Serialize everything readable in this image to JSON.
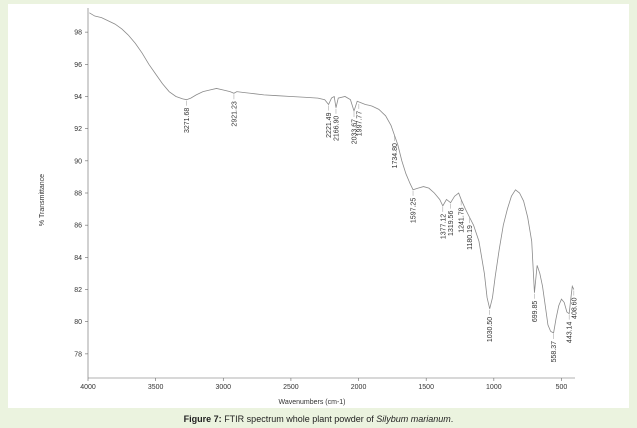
{
  "caption": {
    "figure_number": "Figure 7:",
    "text": " FTIR spectrum whole plant powder of ",
    "species": "Silybum marianum",
    "end": "."
  },
  "chart_data": {
    "type": "line",
    "title": "",
    "xlabel": "Wavenumbers (cm-1)",
    "ylabel": "% Transmittance",
    "xlim": [
      4000,
      400
    ],
    "ylim": [
      76.5,
      99.5
    ],
    "x_ticks": [
      4000,
      3500,
      3000,
      2500,
      2000,
      1500,
      1000,
      500
    ],
    "y_ticks": [
      78,
      80,
      82,
      84,
      86,
      88,
      90,
      92,
      94,
      96,
      98
    ],
    "grid": false,
    "series": [
      {
        "points": [
          [
            3990,
            99.2
          ],
          [
            3950,
            99.0
          ],
          [
            3900,
            98.9
          ],
          [
            3850,
            98.7
          ],
          [
            3800,
            98.5
          ],
          [
            3750,
            98.2
          ],
          [
            3700,
            97.8
          ],
          [
            3650,
            97.3
          ],
          [
            3600,
            96.7
          ],
          [
            3550,
            96.0
          ],
          [
            3500,
            95.4
          ],
          [
            3450,
            94.8
          ],
          [
            3400,
            94.3
          ],
          [
            3350,
            94.0
          ],
          [
            3300,
            93.85
          ],
          [
            3271.68,
            93.8
          ],
          [
            3240,
            93.9
          ],
          [
            3200,
            94.1
          ],
          [
            3150,
            94.3
          ],
          [
            3100,
            94.4
          ],
          [
            3050,
            94.5
          ],
          [
            3000,
            94.4
          ],
          [
            2950,
            94.3
          ],
          [
            2921.23,
            94.2
          ],
          [
            2900,
            94.3
          ],
          [
            2850,
            94.25
          ],
          [
            2800,
            94.2
          ],
          [
            2700,
            94.1
          ],
          [
            2600,
            94.05
          ],
          [
            2500,
            94.0
          ],
          [
            2400,
            93.95
          ],
          [
            2300,
            93.9
          ],
          [
            2250,
            93.8
          ],
          [
            2221.49,
            93.5
          ],
          [
            2200,
            93.9
          ],
          [
            2180,
            94.0
          ],
          [
            2166.9,
            93.3
          ],
          [
            2150,
            93.9
          ],
          [
            2100,
            94.0
          ],
          [
            2060,
            93.8
          ],
          [
            2033.67,
            93.1
          ],
          [
            2010,
            93.7
          ],
          [
            1980,
            93.6
          ],
          [
            1950,
            93.5
          ],
          [
            1920,
            93.45
          ],
          [
            1900,
            93.4
          ],
          [
            1850,
            93.2
          ],
          [
            1800,
            92.8
          ],
          [
            1760,
            92.2
          ],
          [
            1734.8,
            91.6
          ],
          [
            1710,
            91.0
          ],
          [
            1680,
            90.0
          ],
          [
            1650,
            89.2
          ],
          [
            1620,
            88.6
          ],
          [
            1597.25,
            88.2
          ],
          [
            1560,
            88.3
          ],
          [
            1520,
            88.4
          ],
          [
            1480,
            88.3
          ],
          [
            1440,
            88.0
          ],
          [
            1400,
            87.6
          ],
          [
            1377.12,
            87.2
          ],
          [
            1350,
            87.6
          ],
          [
            1319.56,
            87.4
          ],
          [
            1290,
            87.8
          ],
          [
            1260,
            88.0
          ],
          [
            1241.78,
            87.6
          ],
          [
            1210,
            87.0
          ],
          [
            1180.19,
            86.5
          ],
          [
            1150,
            86.0
          ],
          [
            1110,
            85.0
          ],
          [
            1070,
            83.0
          ],
          [
            1050,
            81.5
          ],
          [
            1030.5,
            80.8
          ],
          [
            1010,
            81.5
          ],
          [
            990,
            82.8
          ],
          [
            960,
            84.5
          ],
          [
            930,
            86.0
          ],
          [
            900,
            87.0
          ],
          [
            870,
            87.8
          ],
          [
            840,
            88.2
          ],
          [
            810,
            88.0
          ],
          [
            780,
            87.5
          ],
          [
            750,
            86.5
          ],
          [
            720,
            85.0
          ],
          [
            699.85,
            81.8
          ],
          [
            680,
            83.5
          ],
          [
            660,
            83.0
          ],
          [
            640,
            82.2
          ],
          [
            620,
            81.0
          ],
          [
            600,
            79.8
          ],
          [
            580,
            79.4
          ],
          [
            558.37,
            79.3
          ],
          [
            540,
            80.2
          ],
          [
            520,
            81.0
          ],
          [
            500,
            81.4
          ],
          [
            480,
            81.2
          ],
          [
            460,
            80.6
          ],
          [
            443.14,
            80.5
          ],
          [
            430,
            81.5
          ],
          [
            420,
            82.2
          ],
          [
            408.6,
            82.0
          ]
        ]
      }
    ],
    "annotations": [
      {
        "text": "3271.68",
        "x": 3271.68,
        "y": 93.8
      },
      {
        "text": "2921.23",
        "x": 2921.23,
        "y": 94.2
      },
      {
        "text": "2221.49",
        "x": 2221.49,
        "y": 93.5
      },
      {
        "text": "2166.90",
        "x": 2166.9,
        "y": 93.3
      },
      {
        "text": "2033.67",
        "x": 2033.67,
        "y": 93.1
      },
      {
        "text": "1997.77",
        "x": 1997.77,
        "y": 93.6
      },
      {
        "text": "1734.80",
        "x": 1734.8,
        "y": 91.6
      },
      {
        "text": "1597.25",
        "x": 1597.25,
        "y": 88.2
      },
      {
        "text": "1377.12",
        "x": 1377.12,
        "y": 87.2
      },
      {
        "text": "1319.56",
        "x": 1319.56,
        "y": 87.4
      },
      {
        "text": "1241.78",
        "x": 1241.78,
        "y": 87.6
      },
      {
        "text": "1180.19",
        "x": 1180.19,
        "y": 86.5
      },
      {
        "text": "1030.50",
        "x": 1030.5,
        "y": 80.8
      },
      {
        "text": "699.85",
        "x": 699.85,
        "y": 81.8
      },
      {
        "text": "558.37",
        "x": 558.37,
        "y": 79.3
      },
      {
        "text": "443.14",
        "x": 443.14,
        "y": 80.5
      },
      {
        "text": "408.60",
        "x": 408.6,
        "y": 82.0
      }
    ],
    "colors": {
      "line": "#8a8a8a",
      "axis": "#666666",
      "peak_line": "#999999"
    }
  }
}
